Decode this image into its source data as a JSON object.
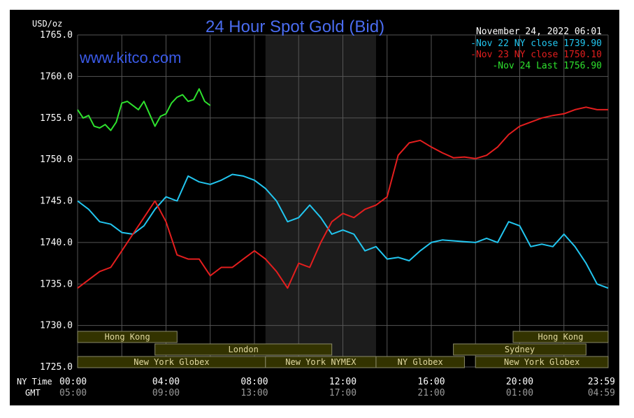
{
  "chart_data": {
    "type": "line",
    "title": "24 Hour Spot Gold (Bid)",
    "watermark": "www.kitco.com",
    "timestamp": "November 24, 2022 06:01",
    "ylabel": "USD/oz",
    "ylim": [
      1725.0,
      1765.0
    ],
    "y_ticks": [
      "1765.0",
      "1760.0",
      "1755.0",
      "1750.0",
      "1745.0",
      "1740.0",
      "1735.0",
      "1730.0",
      "1725.0"
    ],
    "x_row_label_ny": "NY Time",
    "x_row_label_gmt": "GMT",
    "x_ticks_ny": [
      "00:00",
      "04:00",
      "08:00",
      "12:00",
      "16:00",
      "20:00",
      "23:59"
    ],
    "x_ticks_gmt": [
      "05:00",
      "09:00",
      "13:00",
      "17:00",
      "21:00",
      "01:00",
      "04:59"
    ],
    "x_tick_hours": [
      0,
      4,
      8,
      12,
      16,
      20,
      24
    ],
    "grid": true,
    "legend_position": "top-right",
    "shaded_region_hours": [
      8.5,
      13.5
    ],
    "colors": {
      "background": "#000000",
      "grid": "#555555",
      "shade": "#1c1c1c",
      "session_fill": "#333300",
      "session_border": "#8a8a6a",
      "session_text": "#e0d8a0"
    },
    "sessions": [
      {
        "label": "Hong Kong",
        "start": 0.0,
        "end": 4.5,
        "row": 0
      },
      {
        "label": "Hong Kong",
        "start": 19.7,
        "end": 24.0,
        "row": 0
      },
      {
        "label": "London",
        "start": 3.5,
        "end": 11.5,
        "row": 1
      },
      {
        "label": "Sydney",
        "start": 17.0,
        "end": 23.0,
        "row": 1
      },
      {
        "label": "New York Globex",
        "start": 0.0,
        "end": 8.5,
        "row": 2
      },
      {
        "label": "New York NYMEX",
        "start": 8.5,
        "end": 13.5,
        "row": 2
      },
      {
        "label": "NY Globex",
        "start": 13.5,
        "end": 17.5,
        "row": 2
      },
      {
        "label": "New York Globex",
        "start": 18.0,
        "end": 24.0,
        "row": 2
      }
    ],
    "series": [
      {
        "name": "Nov 22 NY close 1739.90",
        "color": "#22c6f0",
        "x": [
          0,
          0.5,
          1,
          1.5,
          2,
          2.5,
          3,
          3.5,
          4,
          4.5,
          5,
          5.5,
          6,
          6.5,
          7,
          7.5,
          8,
          8.5,
          9,
          9.5,
          10,
          10.5,
          11,
          11.5,
          12,
          12.5,
          13,
          13.5,
          14,
          14.5,
          15,
          15.5,
          16,
          16.5,
          17,
          17.5,
          18,
          18.5,
          19,
          19.5,
          20,
          20.5,
          21,
          21.5,
          22,
          22.5,
          23,
          23.5,
          24
        ],
        "y": [
          1745.0,
          1744.0,
          1742.5,
          1742.2,
          1741.2,
          1741.0,
          1742.0,
          1744.0,
          1745.5,
          1745.0,
          1748.0,
          1747.3,
          1747.0,
          1747.5,
          1748.2,
          1748.0,
          1747.5,
          1746.5,
          1745.0,
          1742.5,
          1743.0,
          1744.5,
          1743.0,
          1741.0,
          1741.5,
          1741.0,
          1739.0,
          1739.5,
          1738.0,
          1738.2,
          1737.8,
          1739.0,
          1740.0,
          1740.3,
          1740.2,
          1740.1,
          1740.0,
          1740.5,
          1740.0,
          1742.5,
          1742.0,
          1739.5,
          1739.8,
          1739.5,
          1741.0,
          1739.5,
          1737.5,
          1735.0,
          1734.5
        ]
      },
      {
        "name": "Nov 23 NY close 1750.10",
        "color": "#e41e1e",
        "x": [
          0,
          0.5,
          1,
          1.5,
          2,
          2.5,
          3,
          3.5,
          4,
          4.5,
          5,
          5.5,
          6,
          6.5,
          7,
          7.5,
          8,
          8.5,
          9,
          9.5,
          10,
          10.5,
          11,
          11.5,
          12,
          12.5,
          13,
          13.5,
          14,
          14.5,
          15,
          15.5,
          16,
          16.5,
          17,
          17.5,
          18,
          18.5,
          19,
          19.5,
          20,
          20.5,
          21,
          21.5,
          22,
          22.5,
          23,
          23.5,
          24
        ],
        "y": [
          1734.5,
          1735.5,
          1736.5,
          1737.0,
          1739.0,
          1741.0,
          1743.0,
          1745.0,
          1742.5,
          1738.5,
          1738.0,
          1738.0,
          1736.0,
          1737.0,
          1737.0,
          1738.0,
          1739.0,
          1738.0,
          1736.5,
          1734.5,
          1737.5,
          1737.0,
          1740.0,
          1742.5,
          1743.5,
          1743.0,
          1744.0,
          1744.5,
          1745.5,
          1750.5,
          1752.0,
          1752.3,
          1751.5,
          1750.8,
          1750.2,
          1750.3,
          1750.1,
          1750.5,
          1751.5,
          1753.0,
          1754.0,
          1754.5,
          1755.0,
          1755.3,
          1755.5,
          1756.0,
          1756.3,
          1756.0,
          1756.0
        ]
      },
      {
        "name": "Nov 24 Last 1756.90",
        "color": "#2ee22e",
        "x": [
          0,
          0.25,
          0.5,
          0.75,
          1,
          1.25,
          1.5,
          1.75,
          2,
          2.25,
          2.5,
          2.75,
          3,
          3.25,
          3.5,
          3.75,
          4,
          4.25,
          4.5,
          4.75,
          5,
          5.25,
          5.5,
          5.75,
          6
        ],
        "y": [
          1756.0,
          1755.0,
          1755.3,
          1754.0,
          1753.8,
          1754.2,
          1753.5,
          1754.5,
          1756.8,
          1757.0,
          1756.5,
          1756.0,
          1757.0,
          1755.5,
          1754.0,
          1755.2,
          1755.5,
          1756.8,
          1757.5,
          1757.8,
          1757.0,
          1757.2,
          1758.5,
          1757.0,
          1756.5
        ]
      }
    ]
  }
}
